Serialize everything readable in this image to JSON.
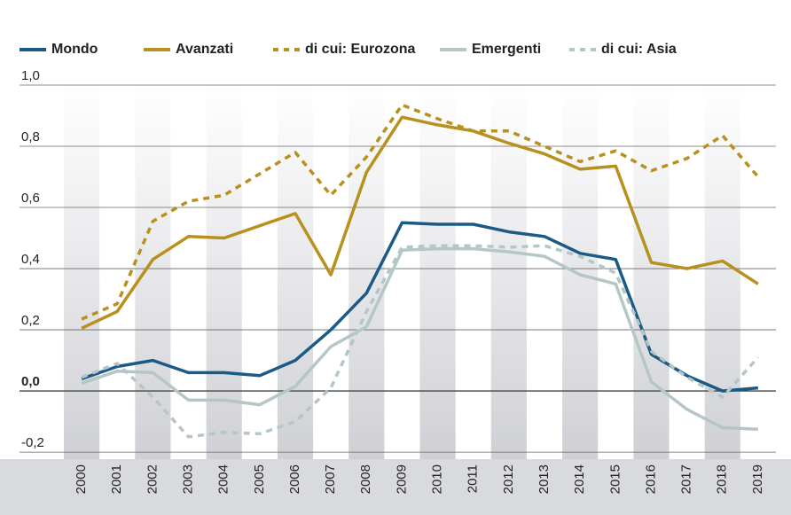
{
  "chart_data": {
    "type": "line",
    "categories": [
      "2000",
      "2001",
      "2002",
      "2003",
      "2004",
      "2005",
      "2006",
      "2007",
      "2008",
      "2009",
      "2010",
      "2011",
      "2012",
      "2013",
      "2014",
      "2015",
      "2016",
      "2017",
      "2018",
      "2019"
    ],
    "series": [
      {
        "name": "Mondo",
        "color": "#1b5a87",
        "dashed": false,
        "values": [
          0.04,
          0.08,
          0.1,
          0.06,
          0.06,
          0.05,
          0.1,
          0.2,
          0.32,
          0.55,
          0.545,
          0.545,
          0.52,
          0.505,
          0.45,
          0.43,
          0.12,
          0.05,
          0.0,
          0.01
        ]
      },
      {
        "name": "Avanzati",
        "color": "#b8901e",
        "dashed": false,
        "values": [
          0.205,
          0.26,
          0.43,
          0.505,
          0.5,
          0.54,
          0.58,
          0.38,
          0.715,
          0.895,
          0.87,
          0.85,
          0.81,
          0.775,
          0.725,
          0.735,
          0.42,
          0.4,
          0.425,
          0.35
        ]
      },
      {
        "name": "di cui: Eurozona",
        "color": "#b8901e",
        "dashed": true,
        "values": [
          0.235,
          0.285,
          0.555,
          0.62,
          0.64,
          0.71,
          0.78,
          0.64,
          0.765,
          0.935,
          0.89,
          0.85,
          0.85,
          0.8,
          0.75,
          0.785,
          0.72,
          0.76,
          0.835,
          0.7
        ]
      },
      {
        "name": "Emergenti",
        "color": "#b4c6c5",
        "dashed": false,
        "values": [
          0.025,
          0.065,
          0.06,
          -0.03,
          -0.03,
          -0.045,
          0.015,
          0.145,
          0.21,
          0.46,
          0.465,
          0.465,
          0.455,
          0.44,
          0.38,
          0.35,
          0.03,
          -0.06,
          -0.12,
          -0.125
        ]
      },
      {
        "name": "di cui: Asia",
        "color": "#b4c6c5",
        "dashed": true,
        "values": [
          0.045,
          0.09,
          -0.02,
          -0.15,
          -0.135,
          -0.14,
          -0.1,
          0.01,
          0.26,
          0.47,
          0.475,
          0.475,
          0.47,
          0.475,
          0.44,
          0.385,
          0.13,
          0.045,
          -0.02,
          0.11
        ]
      }
    ],
    "ylim": [
      -0.22,
      1.0
    ],
    "yticks": [
      {
        "value": -0.2,
        "label": "-0,2"
      },
      {
        "value": 0,
        "label": "0,0"
      },
      {
        "value": 0.2,
        "label": "0,2"
      },
      {
        "value": 0.4,
        "label": "0,4"
      },
      {
        "value": 0.6,
        "label": "0,6"
      },
      {
        "value": 0.8,
        "label": "0,8"
      },
      {
        "value": 1.0,
        "label": "1,0"
      }
    ],
    "grid": true,
    "legend": "top"
  }
}
